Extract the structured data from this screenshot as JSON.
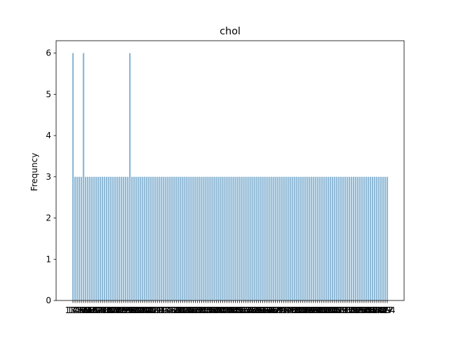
{
  "chart_data": {
    "type": "bar",
    "title": "chol",
    "xlabel": "",
    "ylabel": "Frequncy",
    "ylim": [
      0,
      6.3
    ],
    "yticks": [
      0,
      1,
      2,
      3,
      4,
      5,
      6
    ],
    "bar_color": "#8fb9d6",
    "categories": [
      "131",
      "141",
      "149",
      "157",
      "160",
      "164",
      "166",
      "167",
      "168",
      "169",
      "172",
      "174",
      "175",
      "176",
      "177",
      "178",
      "180",
      "182",
      "183",
      "184",
      "186",
      "187",
      "188",
      "192",
      "193",
      "195",
      "196",
      "197",
      "198",
      "199",
      "200",
      "201",
      "203",
      "204",
      "205",
      "206",
      "207",
      "208",
      "209",
      "210",
      "211",
      "212",
      "213",
      "214",
      "215",
      "216",
      "217",
      "218",
      "219",
      "220",
      "221",
      "222",
      "223",
      "224",
      "225",
      "226",
      "227",
      "228",
      "229",
      "230",
      "231",
      "232",
      "233",
      "234",
      "235",
      "236",
      "237",
      "239",
      "240",
      "241",
      "242",
      "243",
      "244",
      "245",
      "246",
      "247",
      "248",
      "249",
      "250",
      "252",
      "253",
      "254",
      "255",
      "256",
      "257",
      "258",
      "259",
      "260",
      "261",
      "262",
      "263",
      "264",
      "265",
      "266",
      "267",
      "268",
      "269",
      "270",
      "271",
      "273",
      "274",
      "275",
      "276",
      "277",
      "278",
      "281",
      "282",
      "283",
      "284",
      "286",
      "288",
      "289",
      "290",
      "293",
      "294",
      "295",
      "298",
      "299",
      "300",
      "302",
      "303",
      "304",
      "305",
      "306",
      "307",
      "308",
      "309",
      "311",
      "313",
      "315",
      "318",
      "319",
      "321",
      "322",
      "325",
      "326",
      "327",
      "330",
      "335",
      "340",
      "341",
      "342",
      "353",
      "354",
      "360",
      "394",
      "407",
      "409",
      "417",
      "564"
    ],
    "values": [
      6,
      3,
      3,
      3,
      3,
      6,
      3,
      3,
      3,
      3,
      3,
      3,
      3,
      3,
      3,
      3,
      3,
      3,
      3,
      3,
      3,
      3,
      3,
      3,
      3,
      3,
      3,
      6,
      3,
      3,
      3,
      3,
      3,
      3,
      3,
      3,
      3,
      3,
      3,
      3,
      3,
      3,
      3,
      3,
      3,
      3,
      3,
      3,
      3,
      3,
      3,
      3,
      3,
      3,
      3,
      3,
      3,
      3,
      3,
      3,
      3,
      3,
      3,
      3,
      3,
      3,
      3,
      3,
      3,
      3,
      3,
      3,
      3,
      3,
      3,
      3,
      3,
      3,
      3,
      3,
      3,
      3,
      3,
      3,
      3,
      3,
      3,
      3,
      3,
      3,
      3,
      3,
      3,
      3,
      3,
      3,
      3,
      3,
      3,
      3,
      3,
      3,
      3,
      3,
      3,
      3,
      3,
      3,
      3,
      3,
      3,
      3,
      3,
      3,
      3,
      3,
      3,
      3,
      3,
      3,
      3,
      3,
      3,
      3,
      3,
      3,
      3,
      3,
      3,
      3,
      3,
      3,
      3,
      3,
      3,
      3,
      3,
      3,
      3,
      3,
      3,
      3,
      3,
      3,
      3,
      3,
      3,
      3,
      3,
      3
    ]
  }
}
